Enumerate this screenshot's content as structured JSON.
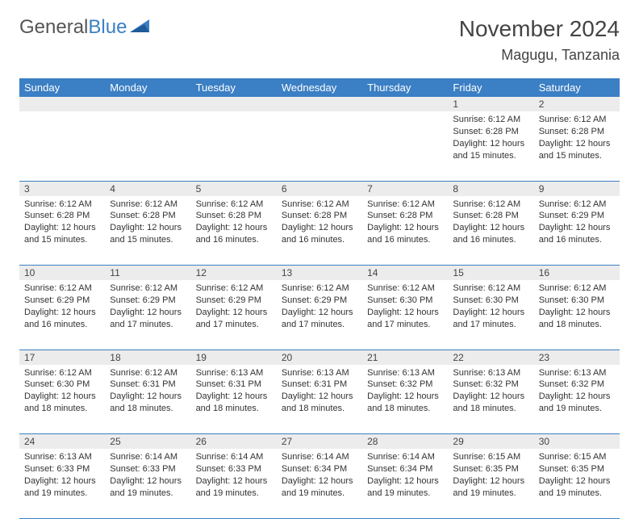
{
  "brand": {
    "part1": "General",
    "part2": "Blue"
  },
  "title": "November 2024",
  "location": "Magugu, Tanzania",
  "colors": {
    "header_bg": "#3b7fc4",
    "header_fg": "#ffffff",
    "daynum_bg": "#ececec",
    "border": "#3b7fc4",
    "text": "#333333"
  },
  "day_headers": [
    "Sunday",
    "Monday",
    "Tuesday",
    "Wednesday",
    "Thursday",
    "Friday",
    "Saturday"
  ],
  "weeks": [
    {
      "nums": [
        "",
        "",
        "",
        "",
        "",
        "1",
        "2"
      ],
      "details": [
        "",
        "",
        "",
        "",
        "",
        "Sunrise: 6:12 AM\nSunset: 6:28 PM\nDaylight: 12 hours and 15 minutes.",
        "Sunrise: 6:12 AM\nSunset: 6:28 PM\nDaylight: 12 hours and 15 minutes."
      ]
    },
    {
      "nums": [
        "3",
        "4",
        "5",
        "6",
        "7",
        "8",
        "9"
      ],
      "details": [
        "Sunrise: 6:12 AM\nSunset: 6:28 PM\nDaylight: 12 hours and 15 minutes.",
        "Sunrise: 6:12 AM\nSunset: 6:28 PM\nDaylight: 12 hours and 15 minutes.",
        "Sunrise: 6:12 AM\nSunset: 6:28 PM\nDaylight: 12 hours and 16 minutes.",
        "Sunrise: 6:12 AM\nSunset: 6:28 PM\nDaylight: 12 hours and 16 minutes.",
        "Sunrise: 6:12 AM\nSunset: 6:28 PM\nDaylight: 12 hours and 16 minutes.",
        "Sunrise: 6:12 AM\nSunset: 6:28 PM\nDaylight: 12 hours and 16 minutes.",
        "Sunrise: 6:12 AM\nSunset: 6:29 PM\nDaylight: 12 hours and 16 minutes."
      ]
    },
    {
      "nums": [
        "10",
        "11",
        "12",
        "13",
        "14",
        "15",
        "16"
      ],
      "details": [
        "Sunrise: 6:12 AM\nSunset: 6:29 PM\nDaylight: 12 hours and 16 minutes.",
        "Sunrise: 6:12 AM\nSunset: 6:29 PM\nDaylight: 12 hours and 17 minutes.",
        "Sunrise: 6:12 AM\nSunset: 6:29 PM\nDaylight: 12 hours and 17 minutes.",
        "Sunrise: 6:12 AM\nSunset: 6:29 PM\nDaylight: 12 hours and 17 minutes.",
        "Sunrise: 6:12 AM\nSunset: 6:30 PM\nDaylight: 12 hours and 17 minutes.",
        "Sunrise: 6:12 AM\nSunset: 6:30 PM\nDaylight: 12 hours and 17 minutes.",
        "Sunrise: 6:12 AM\nSunset: 6:30 PM\nDaylight: 12 hours and 18 minutes."
      ]
    },
    {
      "nums": [
        "17",
        "18",
        "19",
        "20",
        "21",
        "22",
        "23"
      ],
      "details": [
        "Sunrise: 6:12 AM\nSunset: 6:30 PM\nDaylight: 12 hours and 18 minutes.",
        "Sunrise: 6:12 AM\nSunset: 6:31 PM\nDaylight: 12 hours and 18 minutes.",
        "Sunrise: 6:13 AM\nSunset: 6:31 PM\nDaylight: 12 hours and 18 minutes.",
        "Sunrise: 6:13 AM\nSunset: 6:31 PM\nDaylight: 12 hours and 18 minutes.",
        "Sunrise: 6:13 AM\nSunset: 6:32 PM\nDaylight: 12 hours and 18 minutes.",
        "Sunrise: 6:13 AM\nSunset: 6:32 PM\nDaylight: 12 hours and 18 minutes.",
        "Sunrise: 6:13 AM\nSunset: 6:32 PM\nDaylight: 12 hours and 19 minutes."
      ]
    },
    {
      "nums": [
        "24",
        "25",
        "26",
        "27",
        "28",
        "29",
        "30"
      ],
      "details": [
        "Sunrise: 6:13 AM\nSunset: 6:33 PM\nDaylight: 12 hours and 19 minutes.",
        "Sunrise: 6:14 AM\nSunset: 6:33 PM\nDaylight: 12 hours and 19 minutes.",
        "Sunrise: 6:14 AM\nSunset: 6:33 PM\nDaylight: 12 hours and 19 minutes.",
        "Sunrise: 6:14 AM\nSunset: 6:34 PM\nDaylight: 12 hours and 19 minutes.",
        "Sunrise: 6:14 AM\nSunset: 6:34 PM\nDaylight: 12 hours and 19 minutes.",
        "Sunrise: 6:15 AM\nSunset: 6:35 PM\nDaylight: 12 hours and 19 minutes.",
        "Sunrise: 6:15 AM\nSunset: 6:35 PM\nDaylight: 12 hours and 19 minutes."
      ]
    }
  ]
}
